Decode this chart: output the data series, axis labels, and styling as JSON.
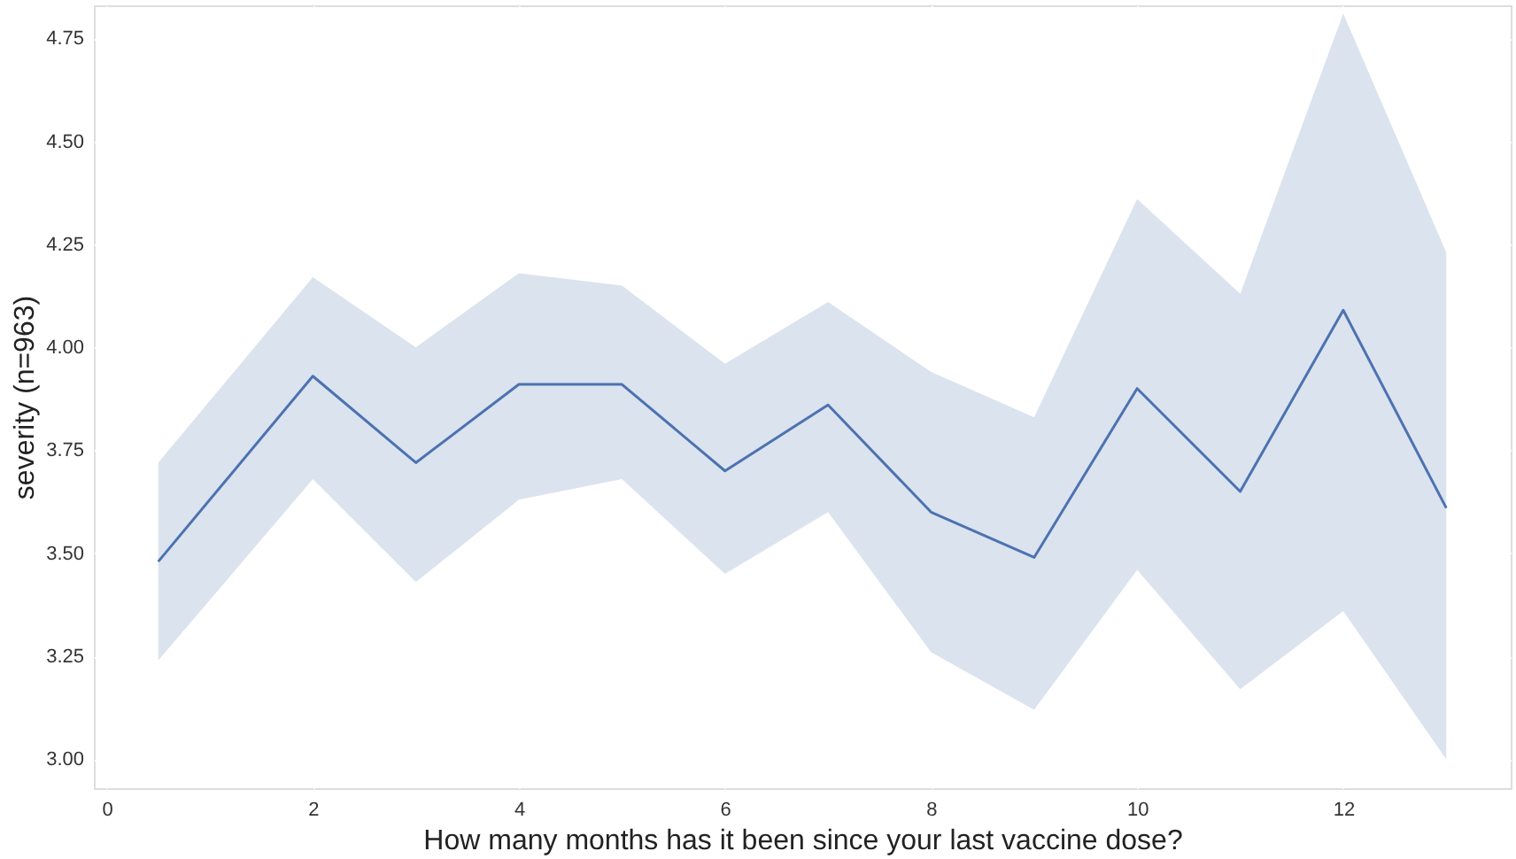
{
  "chart_data": {
    "type": "line",
    "xlabel": "How many months has it been since your last vaccine dose?",
    "ylabel": "severity (n=963)",
    "x": [
      0.5,
      2,
      3,
      4,
      5,
      6,
      7,
      8,
      9,
      10,
      11,
      12,
      13
    ],
    "series": [
      {
        "color": "#4c72b0",
        "values": [
          3.48,
          3.93,
          3.72,
          3.91,
          3.91,
          3.7,
          3.86,
          3.6,
          3.49,
          3.9,
          3.65,
          4.09,
          3.61
        ],
        "lower": [
          3.24,
          3.68,
          3.43,
          3.63,
          3.68,
          3.45,
          3.6,
          3.26,
          3.12,
          3.46,
          3.17,
          3.36,
          3.0
        ],
        "upper": [
          3.72,
          4.17,
          4.0,
          4.18,
          4.15,
          3.96,
          4.11,
          3.94,
          3.83,
          4.36,
          4.13,
          4.81,
          4.23
        ]
      }
    ],
    "xlim": [
      -0.125,
      13.625
    ],
    "ylim": [
      2.93,
      4.83
    ],
    "xticks": [
      0,
      2,
      4,
      6,
      8,
      10,
      12
    ],
    "yticks": [
      {
        "value": 3.0,
        "label": "3.00"
      },
      {
        "value": 3.25,
        "label": "3.25"
      },
      {
        "value": 3.5,
        "label": "3.50"
      },
      {
        "value": 3.75,
        "label": "3.75"
      },
      {
        "value": 4.0,
        "label": "4.00"
      },
      {
        "value": 4.25,
        "label": "4.25"
      },
      {
        "value": 4.5,
        "label": "4.50"
      },
      {
        "value": 4.75,
        "label": "4.75"
      }
    ],
    "grid": true,
    "marker": "none",
    "line_style": "solid"
  }
}
